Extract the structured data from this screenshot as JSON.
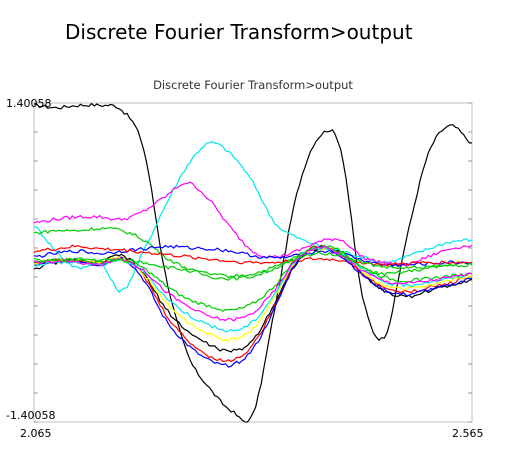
{
  "window": {
    "title": "Discrete Fourier Transform>output"
  },
  "chart_data": {
    "type": "line",
    "title": "Discrete Fourier Transform>output",
    "xlabel": "",
    "ylabel": "",
    "xlim": [
      2.065,
      2.565
    ],
    "ylim": [
      -1.40058,
      1.40058
    ],
    "x_tick_labels": [
      "2.065",
      "2.565"
    ],
    "y_tick_labels": [
      "1.40058",
      "-1.40058"
    ],
    "grid": false,
    "legend": "none",
    "x": [
      2.065,
      2.09,
      2.115,
      2.14,
      2.165,
      2.19,
      2.215,
      2.24,
      2.265,
      2.29,
      2.315,
      2.34,
      2.365,
      2.39,
      2.415,
      2.44,
      2.465,
      2.49,
      2.515,
      2.54,
      2.565
    ],
    "series": [
      {
        "color": "#000000",
        "values": [
          1.38,
          1.36,
          1.38,
          1.38,
          1.34,
          1.0,
          -0.1,
          -0.8,
          -1.1,
          -1.3,
          -1.33,
          -0.4,
          0.6,
          1.1,
          1.0,
          -0.3,
          -0.65,
          0.2,
          0.95,
          1.2,
          1.05
        ]
      },
      {
        "color": "#00e5ee",
        "values": [
          0.32,
          0.1,
          -0.05,
          0.0,
          -0.25,
          0.1,
          0.5,
          0.85,
          1.05,
          0.95,
          0.7,
          0.35,
          0.22,
          0.15,
          0.1,
          0.05,
          0.0,
          0.05,
          0.12,
          0.18,
          0.2
        ]
      },
      {
        "color": "#ff00ff",
        "values": [
          0.35,
          0.38,
          0.4,
          0.4,
          0.38,
          0.45,
          0.58,
          0.7,
          0.55,
          0.3,
          0.1,
          0.05,
          0.1,
          0.18,
          0.2,
          0.05,
          0.0,
          -0.02,
          0.05,
          0.12,
          0.15
        ]
      },
      {
        "color": "#00cc00",
        "values": [
          0.26,
          0.28,
          0.28,
          0.3,
          0.28,
          0.2,
          0.05,
          -0.05,
          -0.12,
          -0.14,
          -0.12,
          -0.05,
          0.05,
          0.15,
          0.1,
          -0.05,
          -0.1,
          -0.08,
          -0.05,
          -0.02,
          0.0
        ]
      },
      {
        "color": "#0000ff",
        "values": [
          0.05,
          0.08,
          0.1,
          0.08,
          0.1,
          0.12,
          0.14,
          0.13,
          0.12,
          0.1,
          0.06,
          0.04,
          0.06,
          0.1,
          0.08,
          0.02,
          -0.02,
          -0.02,
          -0.01,
          0.0,
          0.0
        ]
      },
      {
        "color": "#ff0000",
        "values": [
          0.1,
          0.12,
          0.14,
          0.12,
          0.11,
          0.09,
          0.07,
          0.05,
          0.03,
          0.01,
          0.0,
          0.0,
          0.02,
          0.03,
          0.02,
          0.0,
          -0.02,
          -0.01,
          0.0,
          0.0,
          0.0
        ]
      },
      {
        "color": "#000000",
        "values": [
          -0.05,
          0.0,
          0.02,
          0.0,
          0.06,
          -0.1,
          -0.4,
          -0.6,
          -0.72,
          -0.78,
          -0.68,
          -0.35,
          0.0,
          0.12,
          0.08,
          -0.1,
          -0.25,
          -0.3,
          -0.25,
          -0.2,
          -0.15
        ]
      },
      {
        "color": "#ff0000",
        "values": [
          0.0,
          0.02,
          0.02,
          0.0,
          0.05,
          -0.12,
          -0.45,
          -0.68,
          -0.82,
          -0.86,
          -0.72,
          -0.38,
          0.02,
          0.14,
          0.07,
          -0.1,
          -0.22,
          -0.26,
          -0.22,
          -0.18,
          -0.12
        ]
      },
      {
        "color": "#0000ff",
        "values": [
          -0.02,
          0.0,
          0.01,
          -0.02,
          0.04,
          -0.15,
          -0.5,
          -0.72,
          -0.86,
          -0.9,
          -0.76,
          -0.4,
          0.01,
          0.13,
          0.06,
          -0.11,
          -0.24,
          -0.28,
          -0.24,
          -0.2,
          -0.14
        ]
      },
      {
        "color": "#ffff00",
        "values": [
          0.0,
          0.01,
          0.02,
          0.0,
          0.03,
          -0.1,
          -0.35,
          -0.52,
          -0.63,
          -0.68,
          -0.58,
          -0.3,
          0.02,
          0.12,
          0.07,
          -0.08,
          -0.2,
          -0.23,
          -0.2,
          -0.16,
          -0.12
        ]
      },
      {
        "color": "#00e5ee",
        "values": [
          -0.02,
          0.0,
          0.0,
          -0.02,
          0.02,
          -0.08,
          -0.3,
          -0.45,
          -0.55,
          -0.6,
          -0.52,
          -0.27,
          0.03,
          0.13,
          0.08,
          -0.06,
          -0.17,
          -0.2,
          -0.17,
          -0.14,
          -0.1
        ]
      },
      {
        "color": "#00cc00",
        "values": [
          0.0,
          0.02,
          0.02,
          0.0,
          0.02,
          -0.05,
          -0.2,
          -0.32,
          -0.38,
          -0.42,
          -0.36,
          -0.2,
          0.04,
          0.14,
          0.09,
          -0.04,
          -0.13,
          -0.16,
          -0.14,
          -0.12,
          -0.1
        ]
      },
      {
        "color": "#ff00ff",
        "values": [
          0.0,
          0.01,
          0.0,
          -0.02,
          0.03,
          -0.07,
          -0.25,
          -0.38,
          -0.47,
          -0.5,
          -0.44,
          -0.24,
          0.03,
          0.13,
          0.07,
          -0.07,
          -0.16,
          -0.18,
          -0.16,
          -0.13,
          -0.1
        ]
      },
      {
        "color": "#00cc00",
        "values": [
          0.02,
          0.02,
          0.03,
          0.02,
          0.02,
          0.0,
          -0.04,
          -0.07,
          -0.1,
          -0.12,
          -0.1,
          -0.04,
          0.03,
          0.08,
          0.06,
          0.0,
          -0.04,
          -0.05,
          -0.04,
          -0.03,
          -0.02
        ]
      }
    ]
  }
}
